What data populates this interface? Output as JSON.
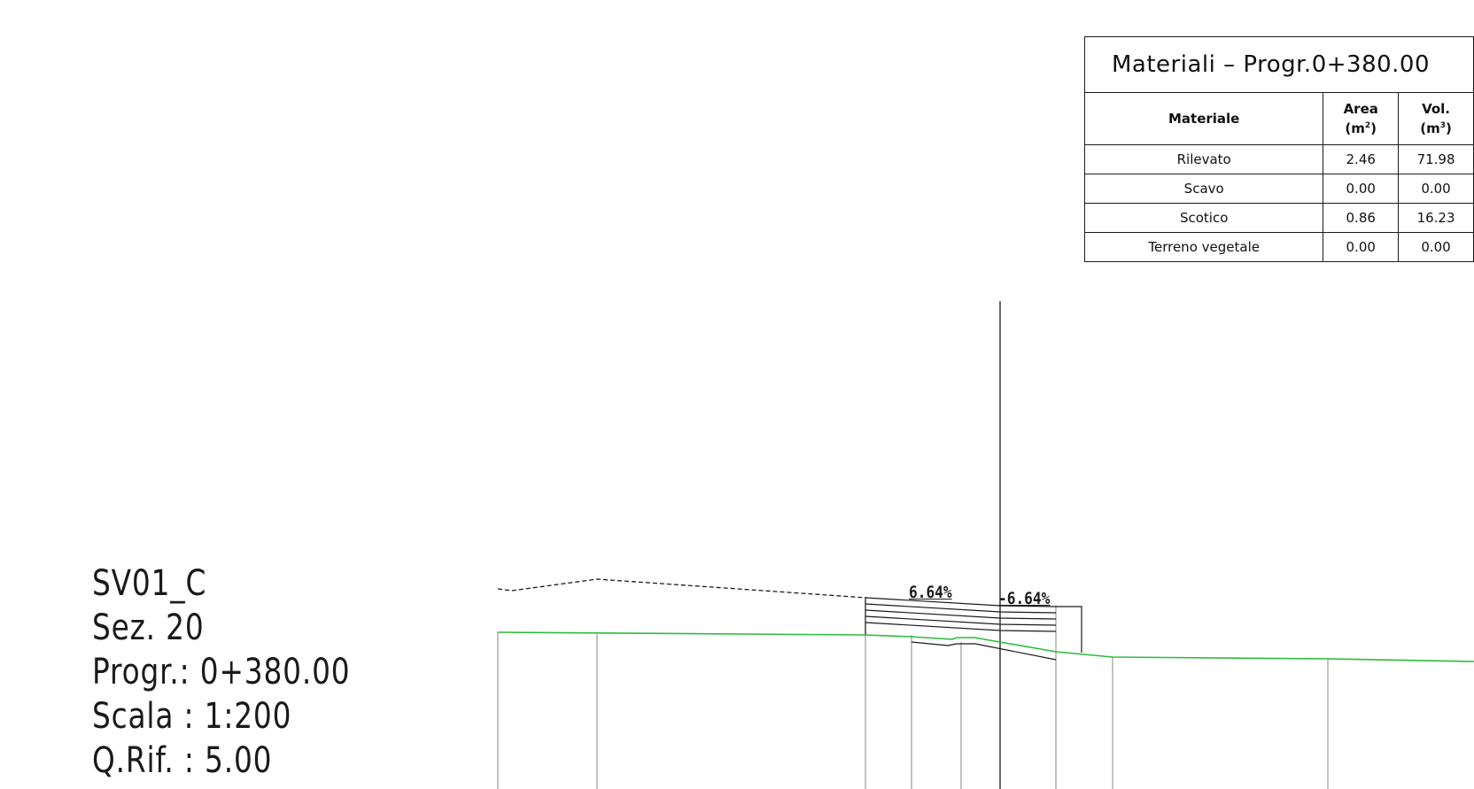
{
  "section": {
    "name": "SV01_C",
    "number_line": "Sez. 20",
    "progr_line": "Progr.: 0+380.00",
    "scale_line": "Scala : 1:200",
    "qrif_line": "Q.Rif. : 5.00"
  },
  "materials": {
    "title": "Materiali  –  Progr.0+380.00",
    "headers": {
      "material": "Materiale",
      "area": "Area",
      "area_unit": "(m",
      "area_exp": "2",
      "vol": "Vol.",
      "vol_unit": "(m",
      "vol_exp": "3"
    },
    "rows": [
      {
        "material": "Rilevato",
        "area": "2.46",
        "vol": "71.98"
      },
      {
        "material": "Scavo",
        "area": "0.00",
        "vol": "0.00"
      },
      {
        "material": "Scotico",
        "area": "0.86",
        "vol": "16.23"
      },
      {
        "material": "Terreno  vegetale",
        "area": "0.00",
        "vol": "0.00"
      }
    ]
  },
  "slopes": {
    "left": "6.64%",
    "right": "-6.64%"
  },
  "colors": {
    "terrain": "#2dbb3c",
    "lines": "#1a1a1a",
    "verticals": "#9a9a9a"
  }
}
